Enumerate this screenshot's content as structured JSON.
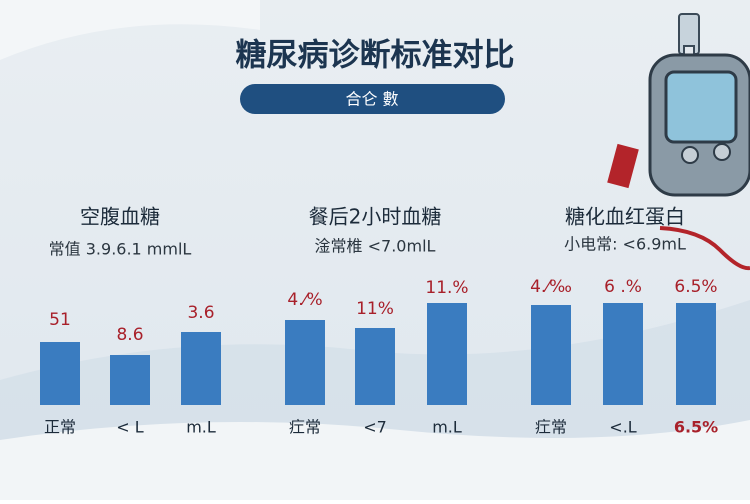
{
  "header": {
    "title": "糖尿病诊断标准对比",
    "button": "合仑 數"
  },
  "panels": [
    {
      "title": "空腹血糖",
      "subtitle": "常值 3.9.6.1 mmlL",
      "bars": [
        {
          "top": "51",
          "bottom": "正常"
        },
        {
          "top": "8.6",
          "bottom": "< L"
        },
        {
          "top": "3.6",
          "bottom": "m.L"
        }
      ]
    },
    {
      "title": "餐后2小时血糖",
      "subtitle": "淦常椎 <7.0mlL",
      "bars": [
        {
          "top": "4.⁄%",
          "bottom": "疘常"
        },
        {
          "top": "11%",
          "bottom": "<7"
        },
        {
          "top": "11.%",
          "bottom": "m.L"
        }
      ]
    },
    {
      "title": "糖化血红蛋白",
      "subtitle": "小电常: <6.9mL",
      "bars": [
        {
          "top": "4.⁄‰",
          "bottom": "疘常"
        },
        {
          "top": "6 .%",
          "bottom": "<.L"
        },
        {
          "top": "6.5%",
          "bottom": "6.5%"
        }
      ]
    }
  ]
}
